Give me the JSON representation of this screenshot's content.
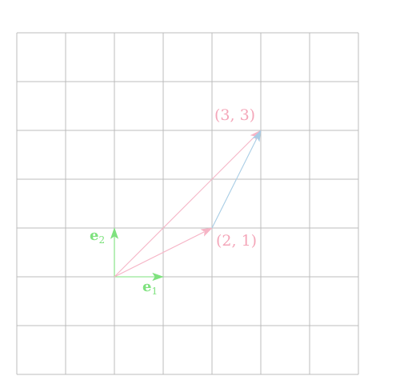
{
  "diagram": {
    "grid": {
      "x_range": [
        -2,
        5
      ],
      "y_range": [
        -2,
        5
      ],
      "step": 1
    },
    "colors": {
      "grid": "#bcbcbc",
      "basis": "#7ee27e",
      "pink": "#f6b5c6",
      "blue": "#a9cde6",
      "label_pink": "#f4a6b9"
    },
    "vectors": [
      {
        "name": "e1",
        "from": [
          0,
          0
        ],
        "to": [
          1,
          0
        ],
        "color_key": "basis"
      },
      {
        "name": "e2",
        "from": [
          0,
          0
        ],
        "to": [
          0,
          1
        ],
        "color_key": "basis"
      },
      {
        "name": "v-2-1",
        "from": [
          0,
          0
        ],
        "to": [
          2,
          1
        ],
        "color_key": "pink"
      },
      {
        "name": "v-3-3",
        "from": [
          0,
          0
        ],
        "to": [
          3,
          3
        ],
        "color_key": "pink"
      },
      {
        "name": "v-1-2",
        "from": [
          2,
          1
        ],
        "to": [
          3,
          3
        ],
        "color_key": "blue"
      }
    ],
    "labels": {
      "e1_main": "e",
      "e1_sub": "1",
      "e2_main": "e",
      "e2_sub": "2",
      "point_2_1": "(2, 1)",
      "point_3_3": "(3, 3)"
    }
  }
}
